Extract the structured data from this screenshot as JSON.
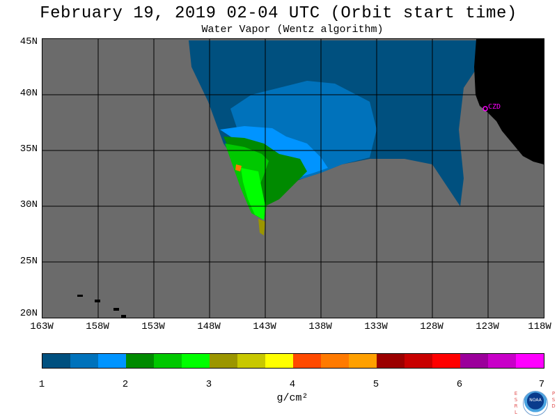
{
  "title": "February 19, 2019  02-04 UTC  (Orbit start time)",
  "subtitle": "Water Vapor (Wentz algorithm)",
  "map": {
    "lat_labels": [
      "45N",
      "40N",
      "35N",
      "30N",
      "25N",
      "20N"
    ],
    "lon_labels": [
      "163W",
      "158W",
      "153W",
      "148W",
      "143W",
      "138W",
      "133W",
      "128W",
      "123W",
      "118W"
    ],
    "lat_range": [
      20,
      45
    ],
    "lon_range": [
      -163,
      -118
    ],
    "station_label": "CZD",
    "no_data_color": "#6b6b6b",
    "land_color": "#000000",
    "grid_color": "#000000"
  },
  "colorbar": {
    "tick_labels": [
      "1",
      "2",
      "3",
      "4",
      "5",
      "6",
      "7"
    ],
    "unit": "g/cm²",
    "colors": [
      "#00507f",
      "#0072bb",
      "#0094ff",
      "#008a00",
      "#00c800",
      "#00ff00",
      "#9b9600",
      "#c8c800",
      "#ffff00",
      "#ff4a00",
      "#ff7a00",
      "#ffa000",
      "#9b0000",
      "#c80000",
      "#ff0000",
      "#9b009b",
      "#c800c8",
      "#ff00ff"
    ]
  },
  "logo": {
    "center_text": "NOAA",
    "left_letters": [
      "E",
      "S",
      "R",
      "L"
    ],
    "right_letters": [
      "P",
      "S",
      "D"
    ]
  }
}
